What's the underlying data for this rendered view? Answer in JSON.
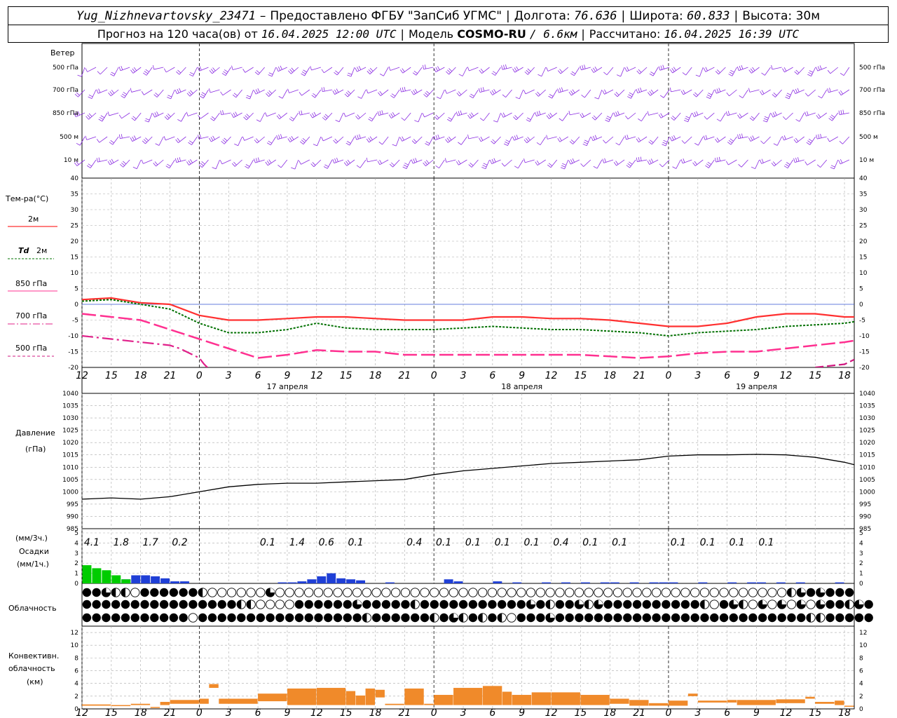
{
  "header": {
    "station": "Yug_Nizhnevartovsky_23471",
    "dash": "–",
    "provider": "Предоставлено ФГБУ \"ЗапСиб УГМС\"",
    "lon_label": "Долгота:",
    "lon": "76.636",
    "lat_label": "Широта:",
    "lat": "60.833",
    "alt_label": "Высота:",
    "alt": "30м",
    "forecast_prefix": "Прогноз на 120 часа(ов) от",
    "forecast_time": "16.04.2025 12:00 UTC",
    "model_label": "Модель",
    "model": "COSMO-RU",
    "model_res": "/ 6.6км",
    "calc_label": "Рассчитано:",
    "calc_time": "16.04.2025 16:39 UTC",
    "separator": "|"
  },
  "labels": {
    "wind": "Ветер",
    "temp": "Тем-ра(°C)",
    "t2m": "2м",
    "td": "Td",
    "td2m": "2м",
    "t850": "850 гПа",
    "t700": "700 гПа",
    "t500": "500 гПа",
    "pressure": "Давление",
    "pressure_unit": "(гПа)",
    "precip3": "(мм/3ч.)",
    "precip": "Осадки",
    "precip1": "(мм/1ч.)",
    "cloud": "Облачность",
    "conv1": "Конвективн.",
    "conv2": "облачность",
    "conv3": "(км)"
  },
  "colors": {
    "wind": "#8a2be2",
    "t2m": "#ff3030",
    "td": "#007000",
    "t850": "#ff3090",
    "t700": "#e0208a",
    "t500": "#d01880",
    "pressure": "#000000",
    "precip_conv": "#00cc00",
    "precip": "#1f3fd6",
    "conv_cloud": "#f08a2a"
  },
  "chart_data": [
    {
      "type": "barbs",
      "levels": [
        "500 гПа",
        "700 гПа",
        "850 гПа",
        "500 м",
        "10 м"
      ]
    },
    {
      "type": "line",
      "x_ticks": [
        "12",
        "15",
        "18",
        "21",
        "0",
        "3",
        "6",
        "9",
        "12",
        "15",
        "18",
        "21",
        "0",
        "3",
        "6",
        "9",
        "12",
        "15",
        "18",
        "21",
        "0",
        "3",
        "6",
        "9",
        "12",
        "15",
        "18"
      ],
      "days": [
        {
          "label": "17 апреля",
          "hour": 21
        },
        {
          "label": "18 апреля",
          "hour": 45
        },
        {
          "label": "19 апреля",
          "hour": 69
        }
      ],
      "ylim": [
        -20,
        40
      ],
      "y_ticks": [
        40,
        35,
        30,
        25,
        20,
        15,
        10,
        5,
        0,
        -5,
        -10,
        -15,
        -20
      ],
      "series": [
        {
          "name": "2м",
          "values": [
            [
              0,
              1.5
            ],
            [
              3,
              2
            ],
            [
              6,
              0.5
            ],
            [
              9,
              0
            ],
            [
              12,
              -3.5
            ],
            [
              15,
              -5
            ],
            [
              18,
              -5
            ],
            [
              21,
              -4.5
            ],
            [
              24,
              -4
            ],
            [
              27,
              -4
            ],
            [
              30,
              -4.5
            ],
            [
              33,
              -5
            ],
            [
              36,
              -5
            ],
            [
              39,
              -5
            ],
            [
              42,
              -4
            ],
            [
              45,
              -4
            ],
            [
              48,
              -4.5
            ],
            [
              51,
              -4.5
            ],
            [
              54,
              -5
            ],
            [
              57,
              -6
            ],
            [
              60,
              -7
            ],
            [
              63,
              -7
            ],
            [
              66,
              -6
            ],
            [
              69,
              -4
            ],
            [
              72,
              -3
            ],
            [
              75,
              -3
            ],
            [
              78,
              -4
            ],
            [
              79,
              -4
            ]
          ]
        },
        {
          "name": "Td 2м",
          "values": [
            [
              0,
              1
            ],
            [
              3,
              1.5
            ],
            [
              6,
              0
            ],
            [
              9,
              -1.5
            ],
            [
              12,
              -6
            ],
            [
              15,
              -9
            ],
            [
              18,
              -9
            ],
            [
              21,
              -8
            ],
            [
              24,
              -6
            ],
            [
              27,
              -7.5
            ],
            [
              30,
              -8
            ],
            [
              33,
              -8
            ],
            [
              36,
              -8
            ],
            [
              39,
              -7.5
            ],
            [
              42,
              -7
            ],
            [
              45,
              -7.5
            ],
            [
              48,
              -8
            ],
            [
              51,
              -8
            ],
            [
              54,
              -8.5
            ],
            [
              57,
              -9
            ],
            [
              60,
              -10
            ],
            [
              63,
              -9
            ],
            [
              66,
              -8.5
            ],
            [
              69,
              -8
            ],
            [
              72,
              -7
            ],
            [
              75,
              -6.5
            ],
            [
              78,
              -6
            ],
            [
              79,
              -5.5
            ]
          ]
        },
        {
          "name": "850 гПа",
          "values": [
            [
              0,
              -3
            ],
            [
              3,
              -4
            ],
            [
              6,
              -5
            ],
            [
              9,
              -8
            ],
            [
              12,
              -11
            ],
            [
              15,
              -14
            ],
            [
              18,
              -17
            ],
            [
              21,
              -16
            ],
            [
              24,
              -14.5
            ],
            [
              27,
              -15
            ],
            [
              30,
              -15
            ],
            [
              33,
              -16
            ],
            [
              36,
              -16
            ],
            [
              39,
              -16
            ],
            [
              42,
              -16
            ],
            [
              45,
              -16
            ],
            [
              48,
              -16
            ],
            [
              51,
              -16
            ],
            [
              54,
              -16.5
            ],
            [
              57,
              -17
            ],
            [
              60,
              -16.5
            ],
            [
              63,
              -15.5
            ],
            [
              66,
              -15
            ],
            [
              69,
              -15
            ],
            [
              72,
              -14
            ],
            [
              75,
              -13
            ],
            [
              78,
              -12
            ],
            [
              79,
              -11.5
            ]
          ]
        },
        {
          "name": "700 гПа",
          "values": [
            [
              0,
              -10
            ],
            [
              3,
              -11
            ],
            [
              6,
              -12
            ],
            [
              9,
              -13
            ],
            [
              10,
              -14
            ],
            [
              11,
              -15.5
            ],
            [
              12,
              -17
            ],
            [
              12.5,
              -19
            ],
            [
              13,
              -20.5
            ]
          ]
        },
        {
          "name": "500 гПа",
          "values": [
            [
              75,
              -20
            ],
            [
              78,
              -19
            ],
            [
              79,
              -17.5
            ]
          ]
        }
      ]
    },
    {
      "type": "line",
      "ylim": [
        985,
        1040
      ],
      "y_ticks": [
        1040,
        1035,
        1030,
        1025,
        1020,
        1015,
        1010,
        1005,
        1000,
        995,
        990,
        985
      ],
      "series": [
        {
          "name": "Давление",
          "values": [
            [
              0,
              997
            ],
            [
              3,
              997.5
            ],
            [
              6,
              997
            ],
            [
              9,
              998
            ],
            [
              12,
              1000
            ],
            [
              15,
              1002
            ],
            [
              18,
              1003
            ],
            [
              21,
              1003.5
            ],
            [
              24,
              1003.5
            ],
            [
              27,
              1004
            ],
            [
              30,
              1004.5
            ],
            [
              33,
              1005
            ],
            [
              36,
              1007
            ],
            [
              39,
              1008.5
            ],
            [
              42,
              1009.5
            ],
            [
              45,
              1010.5
            ],
            [
              48,
              1011.5
            ],
            [
              51,
              1012
            ],
            [
              54,
              1012.5
            ],
            [
              57,
              1013
            ],
            [
              60,
              1014.5
            ],
            [
              63,
              1015
            ],
            [
              66,
              1015
            ],
            [
              69,
              1015.2
            ],
            [
              72,
              1015
            ],
            [
              75,
              1014
            ],
            [
              78,
              1012
            ],
            [
              79,
              1011
            ]
          ]
        }
      ]
    },
    {
      "type": "bar",
      "ylim": [
        0,
        5
      ],
      "y_ticks": [
        5,
        4,
        3,
        2,
        1,
        0
      ],
      "totals_3h": [
        {
          "hour": 1,
          "label": "4.1"
        },
        {
          "hour": 4,
          "label": "1.8"
        },
        {
          "hour": 7,
          "label": "1.7"
        },
        {
          "hour": 10,
          "label": "0.2"
        },
        {
          "hour": 19,
          "label": "0.1"
        },
        {
          "hour": 22,
          "label": "1.4"
        },
        {
          "hour": 25,
          "label": "0.6"
        },
        {
          "hour": 28,
          "label": "0.1"
        },
        {
          "hour": 34,
          "label": "0.4"
        },
        {
          "hour": 37,
          "label": "0.1"
        },
        {
          "hour": 40,
          "label": "0.1"
        },
        {
          "hour": 43,
          "label": "0.1"
        },
        {
          "hour": 46,
          "label": "0.1"
        },
        {
          "hour": 49,
          "label": "0.4"
        },
        {
          "hour": 52,
          "label": "0.1"
        },
        {
          "hour": 55,
          "label": "0.1"
        },
        {
          "hour": 61,
          "label": "0.1"
        },
        {
          "hour": 64,
          "label": "0.1"
        },
        {
          "hour": 67,
          "label": "0.1"
        },
        {
          "hour": 70,
          "label": "0.1"
        }
      ],
      "hourly_conv": [
        1.8,
        1.5,
        1.3,
        0.8,
        0.4,
        0,
        0,
        0,
        0,
        0,
        0
      ],
      "hourly": [
        0,
        0,
        0,
        0,
        0.4,
        0.8,
        0.8,
        0.7,
        0.5,
        0.2,
        0.2,
        0,
        0,
        0,
        0,
        0,
        0,
        0,
        0,
        0,
        0.1,
        0.1,
        0.2,
        0.4,
        0.7,
        1.0,
        0.5,
        0.4,
        0.3,
        0,
        0,
        0.1,
        0,
        0,
        0,
        0,
        0,
        0.4,
        0.2,
        0,
        0,
        0,
        0.2,
        0,
        0.1,
        0,
        0,
        0.1,
        0,
        0.1,
        0,
        0.1,
        0,
        0.1,
        0.1,
        0,
        0.1,
        0,
        0.1,
        0.1,
        0.1,
        0,
        0,
        0.1,
        0,
        0,
        0.1,
        0,
        0.1,
        0.1,
        0,
        0.1,
        0,
        0.1,
        0,
        0,
        0,
        0.1,
        0
      ]
    },
    {
      "type": "table",
      "name": "Облачность",
      "rows": [
        "FFgHHEFFFFFFHEEEEEEgEEEEEEEEEEEEEEEEEEEEEEEEEEEEEEEEEEEEEEEEEEEEEEEEEEEEEHgFgFFF",
        "FFFFFFFFFFFFFFFFHHEEEEFFFFFFgFFFFFHFFFFFFFFFFFgFHFFgHgFFFFFFFFFFHEFgHEgEgEgEgFFHgF",
        "FFFFFFFFFFFEFFFFFFFFFFFFFFFFFHFFFFFFHFgHFHFHEFFFgFFFFFFFFFFFFFFFFFFFFFFFFFFHHFFFFF"
      ]
    },
    {
      "type": "bar",
      "ylim": [
        0,
        13
      ],
      "y_ticks": [
        12,
        10,
        8,
        6,
        4,
        2,
        0
      ],
      "base_top": [
        [
          0,
          0.7,
          0.5
        ],
        [
          3,
          0.6,
          0.5
        ],
        [
          5,
          0.8,
          0.6
        ],
        [
          7,
          0.3,
          0.5
        ],
        [
          8,
          1.1,
          0.6
        ],
        [
          9,
          1.4,
          0.8
        ],
        [
          12,
          1.6,
          0.8
        ],
        [
          13,
          3.9,
          3.3
        ],
        [
          14,
          1.6,
          0.8
        ],
        [
          18,
          2.4,
          1.2
        ],
        [
          21,
          3.2,
          0.6
        ],
        [
          24,
          3.3,
          0.6
        ],
        [
          27,
          2.8,
          0.6
        ],
        [
          28,
          2.1,
          0.6
        ],
        [
          29,
          3.2,
          0.6
        ],
        [
          30,
          3.0,
          1.8
        ],
        [
          31,
          0.8,
          0.6
        ],
        [
          33,
          3.2,
          0.6
        ],
        [
          35,
          0.8,
          0.6
        ],
        [
          36,
          2.2,
          0.6
        ],
        [
          38,
          3.3,
          0.6
        ],
        [
          41,
          3.6,
          0.6
        ],
        [
          43,
          2.7,
          0.6
        ],
        [
          44,
          2.2,
          0.6
        ],
        [
          46,
          2.6,
          0.6
        ],
        [
          48,
          2.6,
          0.6
        ],
        [
          51,
          2.2,
          0.6
        ],
        [
          54,
          1.6,
          0.8
        ],
        [
          56,
          1.4,
          0.5
        ],
        [
          58,
          0.9,
          0.5
        ],
        [
          60,
          1.3,
          0.5
        ],
        [
          62,
          2.4,
          2.0
        ],
        [
          63,
          1.3,
          1.0
        ],
        [
          66,
          1.4,
          1.0
        ],
        [
          67,
          1.4,
          0.6
        ],
        [
          71,
          1.5,
          0.9
        ],
        [
          74,
          1.9,
          1.6
        ],
        [
          75,
          1.1,
          0.8
        ],
        [
          77,
          1.3,
          0.6
        ],
        [
          78,
          0.5,
          0.4
        ]
      ]
    }
  ]
}
